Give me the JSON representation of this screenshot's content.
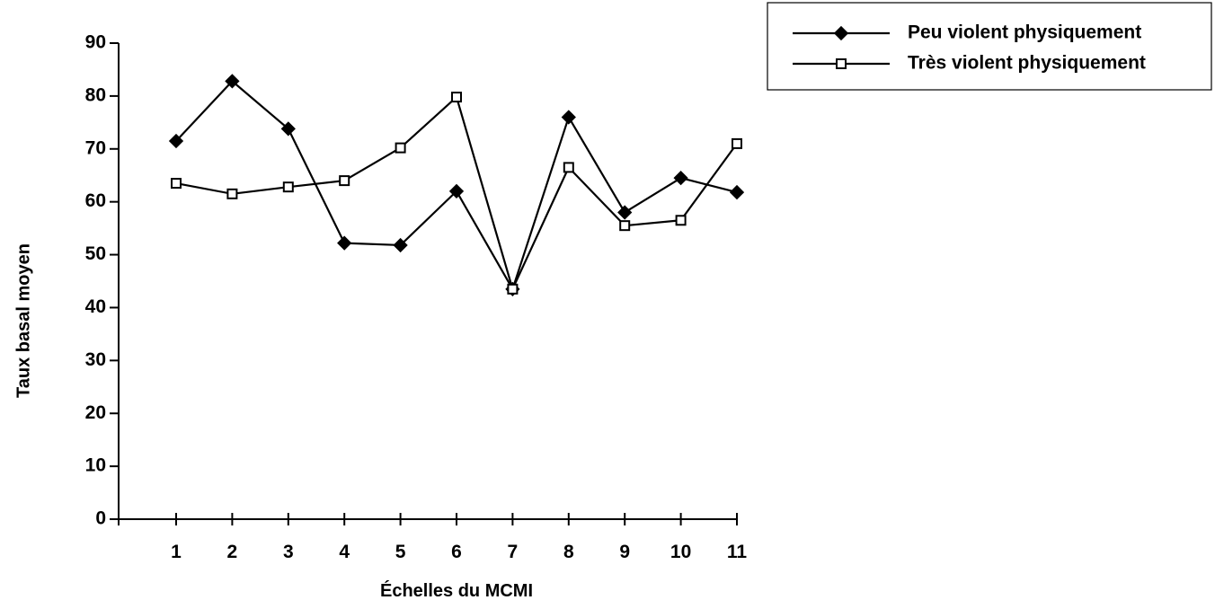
{
  "chart_data": {
    "type": "line",
    "xlabel": "Échelles du MCMI",
    "ylabel": "Taux basal moyen",
    "categories": [
      "1",
      "2",
      "3",
      "4",
      "5",
      "6",
      "7",
      "8",
      "9",
      "10",
      "11"
    ],
    "yticks": [
      "0",
      "10",
      "20",
      "30",
      "40",
      "50",
      "60",
      "70",
      "80",
      "90"
    ],
    "ylim": [
      0,
      90
    ],
    "grid": false,
    "legend_position": "top-right",
    "series": [
      {
        "name": "Peu violent physiquement",
        "marker": "filled",
        "values": [
          71.5,
          82.8,
          73.8,
          52.2,
          51.8,
          62.0,
          43.5,
          76.0,
          58.0,
          64.5,
          61.8
        ]
      },
      {
        "name": "Très violent physiquement",
        "marker": "open",
        "values": [
          63.5,
          61.5,
          62.8,
          64.0,
          70.2,
          79.8,
          43.5,
          66.5,
          55.5,
          56.5,
          71.0
        ]
      }
    ]
  }
}
